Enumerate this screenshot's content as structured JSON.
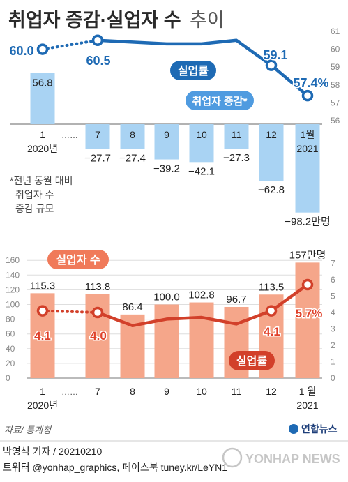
{
  "header": {
    "title": "취업자 증감·실업자 수",
    "title_suffix": "추이"
  },
  "chart_data": [
    {
      "type": "bar",
      "categories": [
        "1",
        "7",
        "8",
        "9",
        "10",
        "11",
        "12",
        "1월"
      ],
      "category_sublabels": [
        "2020년",
        "",
        "",
        "",
        "",
        "",
        "",
        "2021"
      ],
      "gap_marker": "……",
      "series": [
        {
          "name": "취업자 증감*",
          "values": [
            56.8,
            -27.7,
            -27.4,
            -39.2,
            -42.1,
            -27.3,
            -62.8,
            -98.2
          ],
          "labels": [
            "56.8",
            "−27.7",
            "−27.4",
            "−39.2",
            "−42.1",
            "−27.3",
            "−62.8",
            "−98.2만명"
          ]
        },
        {
          "name": "고용률",
          "type": "line",
          "axis": "right",
          "values": [
            60.0,
            60.5,
            null,
            null,
            null,
            null,
            59.1,
            57.4
          ],
          "estimated_values": [
            null,
            null,
            60.4,
            60.3,
            60.3,
            60.5,
            null,
            null
          ],
          "labels": [
            "60.0",
            "60.5",
            "",
            "",
            "",
            "",
            "59.1",
            "57.4%"
          ]
        }
      ],
      "right_axis": {
        "ticks": [
          "61",
          "60",
          "59",
          "58",
          "57",
          "56"
        ],
        "ylim": [
          56,
          61
        ]
      },
      "footnote": [
        "*전년 동월 대비",
        "취업자 수",
        "증감 규모"
      ],
      "colors": {
        "bar": "#a9d3f3",
        "line": "#1e6ab4",
        "label_blue": "#1e6ab4"
      }
    },
    {
      "type": "bar",
      "categories": [
        "1",
        "7",
        "8",
        "9",
        "10",
        "11",
        "12",
        "1 월"
      ],
      "category_sublabels": [
        "2020년",
        "",
        "",
        "",
        "",
        "",
        "",
        "2021"
      ],
      "gap_marker": "……",
      "series": [
        {
          "name": "실업자 수",
          "values": [
            115.3,
            113.8,
            86.4,
            100.0,
            102.8,
            96.7,
            113.5,
            157
          ],
          "labels": [
            "115.3",
            "113.8",
            "86.4",
            "100.0",
            "102.8",
            "96.7",
            "113.5",
            "157만명"
          ]
        },
        {
          "name": "실업률",
          "type": "line",
          "axis": "right",
          "values": [
            4.1,
            4.0,
            null,
            null,
            null,
            null,
            4.1,
            5.7
          ],
          "estimated_values": [
            null,
            null,
            3.2,
            3.6,
            3.7,
            3.3,
            null,
            null
          ],
          "labels": [
            "4.1",
            "4.0",
            "",
            "",
            "",
            "",
            "4.1",
            "5.7%"
          ]
        }
      ],
      "left_axis": {
        "ticks": [
          "160",
          "140",
          "120",
          "100",
          "80",
          "60",
          "40",
          "20",
          "0"
        ],
        "ylim": [
          0,
          160
        ]
      },
      "right_axis": {
        "ticks": [
          "7",
          "6",
          "5",
          "4",
          "3",
          "2",
          "1",
          "0"
        ],
        "ylim": [
          0,
          7
        ]
      },
      "colors": {
        "bar": "#f5a68a",
        "line": "#d2402a",
        "label_red": "#e0412a"
      }
    }
  ],
  "footer": {
    "source": "자료/ 통계청",
    "logo": "연합뉴스",
    "author": "박영석 기자 / 20210210",
    "social": "트위터 @yonhap_graphics, 페이스북 tuney.kr/LeYN1",
    "watermark": "YONHAP NEWS"
  }
}
